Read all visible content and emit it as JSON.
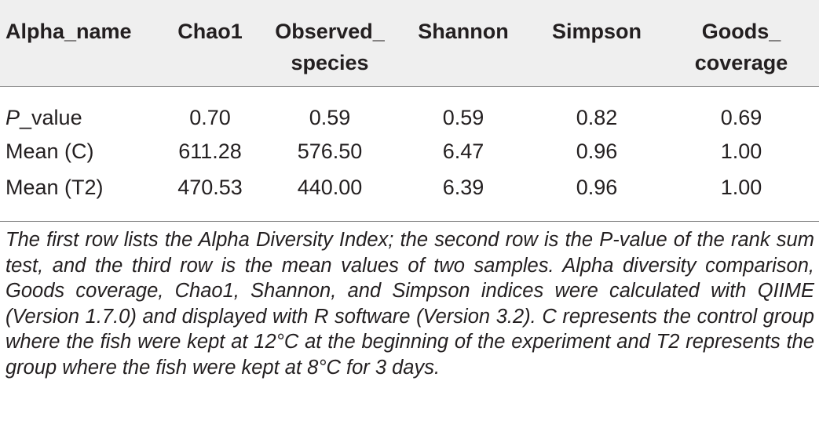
{
  "table": {
    "headers": [
      {
        "lines": [
          "Alpha_name"
        ]
      },
      {
        "lines": [
          "Chao1"
        ]
      },
      {
        "lines": [
          "Observed_",
          "species"
        ]
      },
      {
        "lines": [
          "Shannon"
        ]
      },
      {
        "lines": [
          "Simpson"
        ]
      },
      {
        "lines": [
          "Goods_",
          "coverage"
        ]
      }
    ],
    "rows": [
      {
        "label_italic": "P",
        "label_rest": "_value",
        "values": [
          "0.70",
          "0.59",
          "0.59",
          "0.82",
          "0.69"
        ]
      },
      {
        "label": "Mean (C)",
        "values": [
          "611.28",
          "576.50",
          "6.47",
          "0.96",
          "1.00"
        ]
      },
      {
        "label": "Mean (T2)",
        "values": [
          "470.53",
          "440.00",
          "6.39",
          "0.96",
          "1.00"
        ]
      }
    ]
  },
  "caption": "The first row lists the Alpha Diversity Index; the second row is the P-value of the rank sum test, and the third row is the mean values of two samples. Alpha diversity comparison, Goods coverage, Chao1, Shannon, and Simpson indices were calculated with QIIME (Version 1.7.0) and displayed with R software (Version 3.2). C represents the control group where the fish were kept at 12°C at the beginning of the experiment and T2 represents the group where the fish were kept at 8°C for 3 days."
}
